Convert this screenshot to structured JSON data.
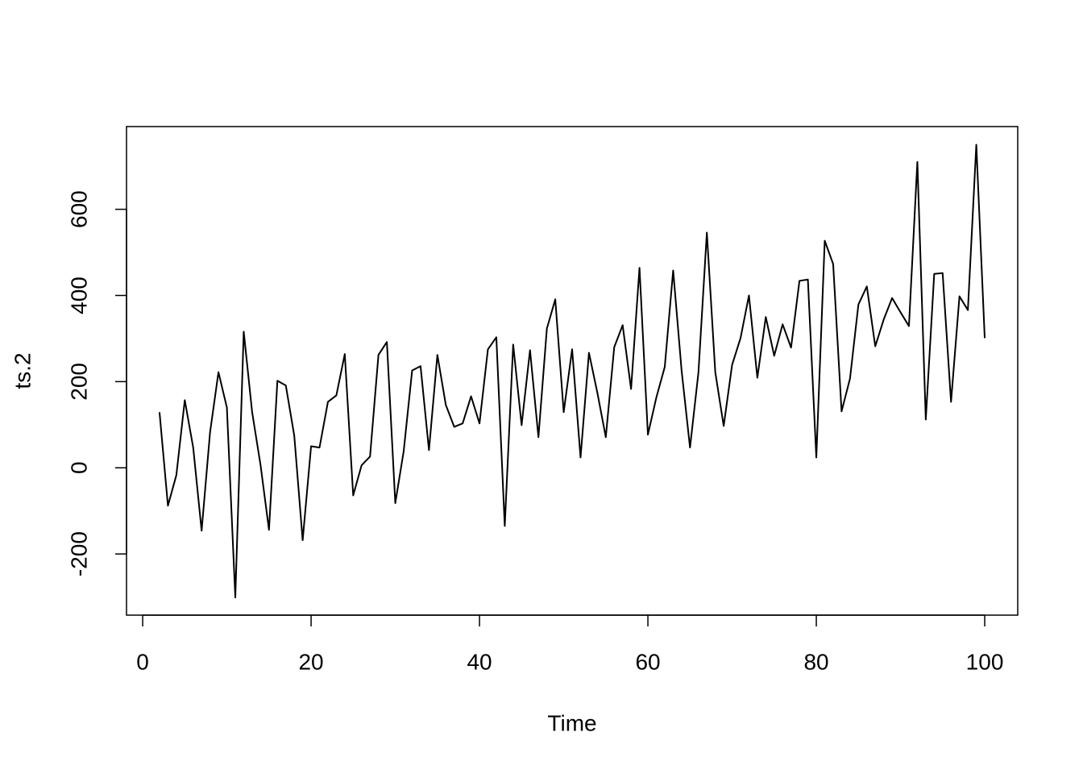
{
  "chart_data": {
    "type": "line",
    "x_label": "Time",
    "y_label": "ts.2",
    "x": [
      2,
      3,
      4,
      5,
      6,
      7,
      8,
      9,
      10,
      11,
      12,
      13,
      14,
      15,
      16,
      17,
      18,
      19,
      20,
      21,
      22,
      23,
      24,
      25,
      26,
      27,
      28,
      29,
      30,
      31,
      32,
      33,
      34,
      35,
      36,
      37,
      38,
      39,
      40,
      41,
      42,
      43,
      44,
      45,
      46,
      47,
      48,
      49,
      50,
      51,
      52,
      53,
      54,
      55,
      56,
      57,
      58,
      59,
      60,
      61,
      62,
      63,
      64,
      65,
      66,
      67,
      68,
      69,
      70,
      71,
      72,
      73,
      74,
      75,
      76,
      77,
      78,
      79,
      80,
      81,
      82,
      83,
      84,
      85,
      86,
      87,
      88,
      89,
      90,
      91,
      92,
      93,
      94,
      95,
      96,
      97,
      98,
      99,
      100
    ],
    "values": [
      129,
      -88,
      -17,
      157,
      47,
      -146,
      82,
      222,
      140,
      -301,
      316,
      129,
      6,
      -144,
      202,
      191,
      75,
      -168,
      50,
      47,
      153,
      168,
      264,
      -64,
      6,
      26,
      262,
      292,
      -82,
      39,
      226,
      236,
      41,
      262,
      146,
      95,
      103,
      166,
      103,
      275,
      303,
      -135,
      286,
      99,
      273,
      71,
      323,
      391,
      129,
      275,
      24,
      267,
      174,
      71,
      280,
      331,
      183,
      464,
      77,
      163,
      234,
      458,
      226,
      47,
      221,
      546,
      222,
      97,
      239,
      301,
      400,
      209,
      350,
      260,
      333,
      279,
      434,
      437,
      24,
      527,
      473,
      131,
      207,
      379,
      421,
      282,
      344,
      394,
      361,
      329,
      710,
      112,
      450,
      452,
      153,
      398,
      366,
      750,
      301
    ],
    "color": "#000000",
    "xlim": [
      -1.92,
      103.92
    ],
    "ylim": [
      -342,
      792
    ],
    "xticks": [
      0,
      20,
      40,
      60,
      80,
      100
    ],
    "yticks": [
      -200,
      0,
      200,
      400,
      600
    ]
  }
}
